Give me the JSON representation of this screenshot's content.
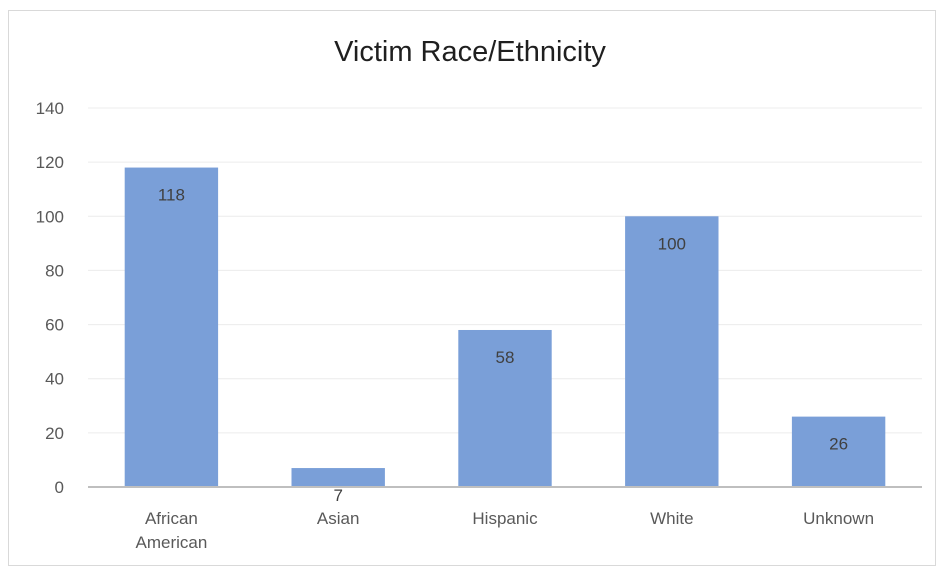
{
  "chart_data": {
    "type": "bar",
    "title": "Victim Race/Ethnicity",
    "xlabel": "",
    "ylabel": "",
    "categories": [
      [
        "African",
        "American"
      ],
      [
        "Asian"
      ],
      [
        "Hispanic"
      ],
      [
        "White"
      ],
      [
        "Unknown"
      ]
    ],
    "values": [
      118,
      7,
      58,
      100,
      26
    ],
    "ylim": [
      0,
      140
    ],
    "yticks": [
      0,
      20,
      40,
      60,
      80,
      100,
      120,
      140
    ],
    "grid": true,
    "legend": "none",
    "data_labels": true,
    "colors": {
      "bar": "#7a9fd8",
      "gridline": "#ececec",
      "axis": "#bfbfbf"
    }
  }
}
